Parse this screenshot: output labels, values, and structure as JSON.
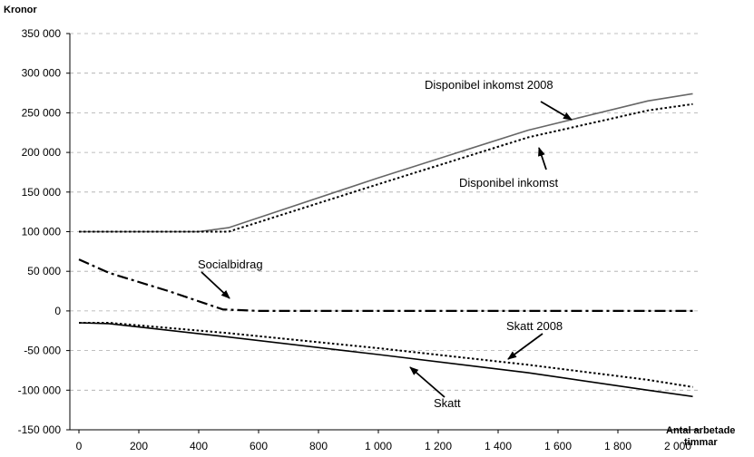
{
  "chart_data": {
    "type": "line",
    "ylabel": "Kronor",
    "xlabel_line1": "Antal arbetade",
    "xlabel_line2": "timmar",
    "xlim": [
      0,
      2000
    ],
    "ylim": [
      -150000,
      350000
    ],
    "grid": true,
    "x_ticks": [
      0,
      200,
      400,
      600,
      800,
      1000,
      1200,
      1400,
      1600,
      1800,
      2000
    ],
    "x_tick_labels": [
      "0",
      "200",
      "400",
      "600",
      "800",
      "1 000",
      "1 200",
      "1 400",
      "1 600",
      "1 800",
      "2 000"
    ],
    "y_ticks": [
      350000,
      300000,
      250000,
      200000,
      150000,
      100000,
      50000,
      0,
      -50000,
      -100000,
      -150000
    ],
    "y_tick_labels": [
      "350 000",
      "300 000",
      "250 000",
      "200 000",
      "150 000",
      "100 000",
      "50 000",
      "0",
      "-50 000",
      "-100 000",
      "-150 000"
    ],
    "series": [
      {
        "name": "Disponibel inkomst 2008",
        "color": "#666666",
        "style": "solid",
        "x": [
          0,
          400,
          500,
          1000,
          1500,
          1900,
          2050
        ],
        "y": [
          100000,
          100000,
          105000,
          168000,
          228000,
          265000,
          274000
        ]
      },
      {
        "name": "Disponibel inkomst",
        "color": "#000000",
        "style": "dotted",
        "x": [
          0,
          400,
          500,
          1000,
          1500,
          1900,
          2050
        ],
        "y": [
          100000,
          100000,
          100000,
          160000,
          219000,
          253000,
          261000
        ]
      },
      {
        "name": "Socialbidrag",
        "color": "#000000",
        "style": "dashdot",
        "x": [
          0,
          100,
          300,
          480,
          600,
          1000,
          2050
        ],
        "y": [
          65000,
          48000,
          25000,
          2000,
          0,
          0,
          0
        ]
      },
      {
        "name": "Skatt 2008",
        "color": "#000000",
        "style": "dotted",
        "x": [
          0,
          100,
          500,
          1000,
          1500,
          1900,
          2050
        ],
        "y": [
          -15000,
          -15000,
          -28000,
          -47000,
          -68000,
          -87000,
          -96000
        ]
      },
      {
        "name": "Skatt",
        "color": "#000000",
        "style": "solid",
        "x": [
          0,
          100,
          500,
          1000,
          1500,
          1900,
          2050
        ],
        "y": [
          -15000,
          -16000,
          -33000,
          -55000,
          -78000,
          -100000,
          -108000
        ]
      }
    ],
    "annotations": [
      {
        "text": "Disponibel inkomst 2008",
        "target_x": 1470,
        "target_y": 226000
      },
      {
        "text": "Disponibel inkomst",
        "target_x": 1410,
        "target_y": 212000
      },
      {
        "text": "Socialbidrag",
        "target_x": 390,
        "target_y": 14000
      },
      {
        "text": "Skatt 2008",
        "target_x": 1280,
        "target_y": -64000
      },
      {
        "text": "Skatt",
        "target_x": 990,
        "target_y": -64000
      }
    ]
  }
}
